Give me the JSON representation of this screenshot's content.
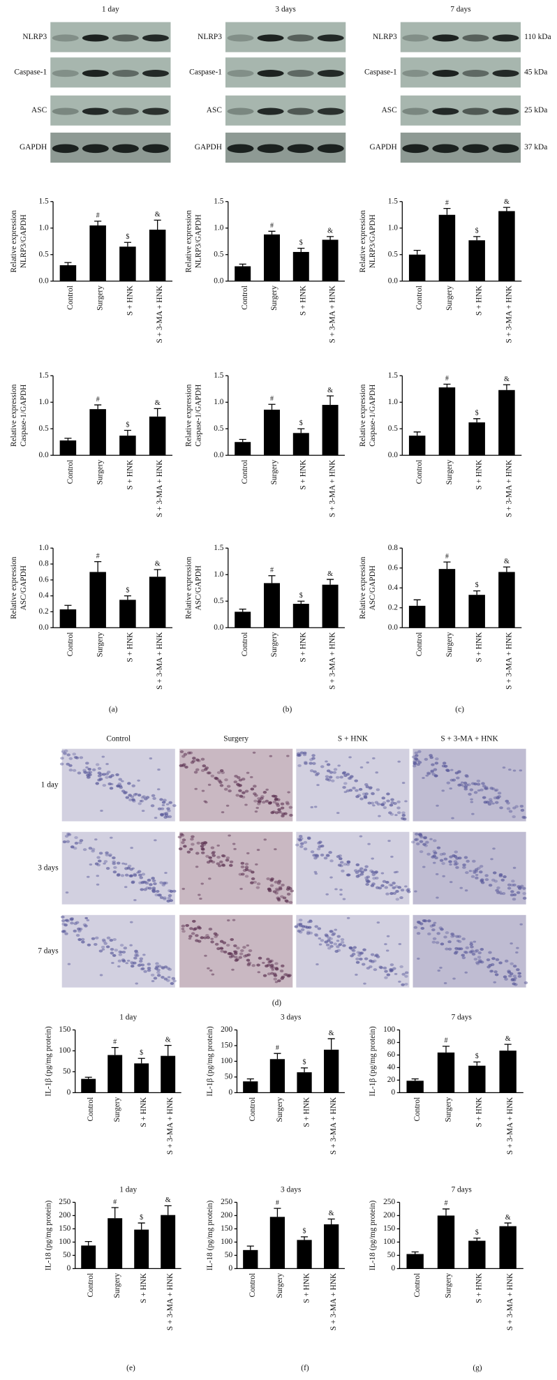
{
  "figure": {
    "blot_titles": [
      "1 day",
      "3 days",
      "7 days"
    ],
    "blot_proteins": [
      "NLRP3",
      "Caspase-1",
      "ASC",
      "GAPDH"
    ],
    "blot_sizes": [
      "110 kDa",
      "45 kDa",
      "25 kDa",
      "37 kDa"
    ],
    "histology_columns": [
      "Control",
      "Surgery",
      "S + HNK",
      "S + 3-MA + HNK"
    ],
    "histology_rows": [
      "1 day",
      "3 days",
      "7 days"
    ],
    "panel_labels": [
      "(a)",
      "(b)",
      "(c)",
      "(d)",
      "(e)",
      "(f)",
      "(g)"
    ]
  },
  "chart_data": [
    {
      "type": "bar",
      "ylabel": [
        "Relative expression",
        "NLRP3/GAPDH"
      ],
      "categories": [
        "Control",
        "Surgery",
        "S + HNK",
        "S + 3-MA + HNK"
      ],
      "values": [
        0.3,
        1.05,
        0.65,
        0.97
      ],
      "errors": [
        0.05,
        0.08,
        0.08,
        0.18
      ],
      "markers": [
        null,
        "#",
        "$",
        "&"
      ],
      "color": "#000000",
      "ylim": [
        0,
        1.5
      ],
      "yticks": [
        {
          "value": 0,
          "label": "0.0"
        },
        0.5,
        {
          "value": 1,
          "label": "1.0"
        },
        1.5
      ]
    },
    {
      "type": "bar",
      "ylabel": [
        "Relative expression",
        "NLRP3/GAPDH"
      ],
      "categories": [
        "Control",
        "Surgery",
        "S + HNK",
        "S + 3-MA + HNK"
      ],
      "values": [
        0.28,
        0.88,
        0.55,
        0.78
      ],
      "errors": [
        0.04,
        0.06,
        0.07,
        0.06
      ],
      "markers": [
        null,
        "#",
        "$",
        "&"
      ],
      "color": "#000000",
      "ylim": [
        0,
        1.5
      ],
      "yticks": [
        {
          "value": 0,
          "label": "0.0"
        },
        0.5,
        {
          "value": 1,
          "label": "1.0"
        },
        1.5
      ]
    },
    {
      "type": "bar",
      "ylabel": [
        "Relative expression",
        "NLRP3/GAPDH"
      ],
      "categories": [
        "Control",
        "Surgery",
        "S + HNK",
        "S + 3-MA + HNK"
      ],
      "values": [
        0.5,
        1.25,
        0.77,
        1.32
      ],
      "errors": [
        0.08,
        0.12,
        0.07,
        0.07
      ],
      "markers": [
        null,
        "#",
        "$",
        "&"
      ],
      "color": "#000000",
      "ylim": [
        0,
        1.5
      ],
      "yticks": [
        {
          "value": 0,
          "label": "0.0"
        },
        0.5,
        {
          "value": 1,
          "label": "1.0"
        },
        1.5
      ]
    },
    {
      "type": "bar",
      "ylabel": [
        "Relative expression",
        "Caspase-1/GAPDH"
      ],
      "categories": [
        "Control",
        "Surgery",
        "S + HNK",
        "S + 3-MA + HNK"
      ],
      "values": [
        0.28,
        0.87,
        0.37,
        0.73
      ],
      "errors": [
        0.04,
        0.08,
        0.1,
        0.15
      ],
      "markers": [
        null,
        "#",
        "$",
        "&"
      ],
      "color": "#000000",
      "ylim": [
        0,
        1.5
      ],
      "yticks": [
        {
          "value": 0,
          "label": "0.0"
        },
        0.5,
        {
          "value": 1,
          "label": "1.0"
        },
        1.5
      ]
    },
    {
      "type": "bar",
      "ylabel": [
        "Relative expression",
        "Caspase-1/GAPDH"
      ],
      "categories": [
        "Control",
        "Surgery",
        "S + HNK",
        "S + 3-MA + HNK"
      ],
      "values": [
        0.25,
        0.86,
        0.42,
        0.95
      ],
      "errors": [
        0.05,
        0.1,
        0.08,
        0.17
      ],
      "markers": [
        null,
        "#",
        "$",
        "&"
      ],
      "color": "#000000",
      "ylim": [
        0,
        1.5
      ],
      "yticks": [
        {
          "value": 0,
          "label": "0.0"
        },
        0.5,
        {
          "value": 1,
          "label": "1.0"
        },
        1.5
      ]
    },
    {
      "type": "bar",
      "ylabel": [
        "Relative expression",
        "Caspase-1/GAPDH"
      ],
      "categories": [
        "Control",
        "Surgery",
        "S + HNK",
        "S + 3-MA + HNK"
      ],
      "values": [
        0.37,
        1.28,
        0.62,
        1.23
      ],
      "errors": [
        0.07,
        0.06,
        0.07,
        0.1
      ],
      "markers": [
        null,
        "#",
        "$",
        "&"
      ],
      "color": "#000000",
      "ylim": [
        0,
        1.5
      ],
      "yticks": [
        {
          "value": 0,
          "label": "0.0"
        },
        0.5,
        {
          "value": 1,
          "label": "1.0"
        },
        1.5
      ]
    },
    {
      "type": "bar",
      "ylabel": [
        "Relative expression",
        "ASC/GAPDH"
      ],
      "categories": [
        "Control",
        "Surgery",
        "S + HNK",
        "S + 3-MA + HNK"
      ],
      "values": [
        0.23,
        0.7,
        0.35,
        0.64
      ],
      "errors": [
        0.05,
        0.13,
        0.05,
        0.09
      ],
      "markers": [
        null,
        "#",
        "$",
        "&"
      ],
      "color": "#000000",
      "ylim": [
        0,
        1
      ],
      "yticks": [
        {
          "value": 0,
          "label": "0.0"
        },
        0.2,
        0.4,
        0.6,
        0.8,
        {
          "value": 1,
          "label": "1.0"
        }
      ]
    },
    {
      "type": "bar",
      "ylabel": [
        "Relative expression",
        "ASC/GAPDH"
      ],
      "categories": [
        "Control",
        "Surgery",
        "S + HNK",
        "S + 3-MA + HNK"
      ],
      "values": [
        0.3,
        0.84,
        0.45,
        0.81
      ],
      "errors": [
        0.05,
        0.14,
        0.05,
        0.1
      ],
      "markers": [
        null,
        "#",
        "$",
        "&"
      ],
      "color": "#000000",
      "ylim": [
        0,
        1.5
      ],
      "yticks": [
        {
          "value": 0,
          "label": "0.0"
        },
        0.5,
        {
          "value": 1,
          "label": "1.0"
        },
        1.5
      ]
    },
    {
      "type": "bar",
      "ylabel": [
        "Relative expression",
        "ASC/GAPDH"
      ],
      "categories": [
        "Control",
        "Surgery",
        "S + HNK",
        "S + 3-MA + HNK"
      ],
      "values": [
        0.22,
        0.59,
        0.33,
        0.56
      ],
      "errors": [
        0.06,
        0.07,
        0.04,
        0.05
      ],
      "markers": [
        null,
        "#",
        "$",
        "&"
      ],
      "color": "#000000",
      "ylim": [
        0,
        0.8
      ],
      "yticks": [
        {
          "value": 0,
          "label": "0.0"
        },
        0.2,
        0.4,
        0.6,
        0.8
      ]
    },
    {
      "type": "bar",
      "title": "1 day",
      "ylabel": [
        "IL-1β (pg/mg protein)"
      ],
      "categories": [
        "Control",
        "Surgery",
        "S + HNK",
        "S + 3-MA + HNK"
      ],
      "values": [
        33,
        90,
        70,
        88
      ],
      "errors": [
        4,
        18,
        12,
        25
      ],
      "markers": [
        null,
        "#",
        "$",
        "&"
      ],
      "color": "#000000",
      "ylim": [
        0,
        150
      ],
      "yticks": [
        0,
        50,
        100,
        150
      ]
    },
    {
      "type": "bar",
      "title": "3 days",
      "ylabel": [
        "IL-1β (pg/mg protein)"
      ],
      "categories": [
        "Control",
        "Surgery",
        "S + HNK",
        "S + 3-MA + HNK"
      ],
      "values": [
        36,
        107,
        65,
        137
      ],
      "errors": [
        8,
        18,
        14,
        35
      ],
      "markers": [
        null,
        "#",
        "$",
        "&"
      ],
      "color": "#000000",
      "ylim": [
        0,
        200
      ],
      "yticks": [
        0,
        50,
        100,
        150,
        200
      ]
    },
    {
      "type": "bar",
      "title": "7 days",
      "ylabel": [
        "IL-1β (pg/mg protein)"
      ],
      "categories": [
        "Control",
        "Surgery",
        "S + HNK",
        "S + 3-MA + HNK"
      ],
      "values": [
        19,
        64,
        43,
        67
      ],
      "errors": [
        3,
        10,
        6,
        10
      ],
      "markers": [
        null,
        "#",
        "$",
        "&"
      ],
      "color": "#000000",
      "ylim": [
        0,
        100
      ],
      "yticks": [
        0,
        20,
        40,
        60,
        80,
        100
      ]
    },
    {
      "type": "bar",
      "title": "1 day",
      "ylabel": [
        "IL-18 (pg/mg protein)"
      ],
      "categories": [
        "Control",
        "Surgery",
        "S + HNK",
        "S + 3-MA + HNK"
      ],
      "values": [
        87,
        190,
        147,
        202
      ],
      "errors": [
        15,
        40,
        25,
        35
      ],
      "markers": [
        null,
        "#",
        "$",
        "&"
      ],
      "color": "#000000",
      "ylim": [
        0,
        250
      ],
      "yticks": [
        0,
        50,
        100,
        150,
        200,
        250
      ]
    },
    {
      "type": "bar",
      "title": "3 days",
      "ylabel": [
        "IL-18 (pg/mg protein)"
      ],
      "categories": [
        "Control",
        "Surgery",
        "S + HNK",
        "S + 3-MA + HNK"
      ],
      "values": [
        70,
        195,
        108,
        167
      ],
      "errors": [
        15,
        32,
        12,
        20
      ],
      "markers": [
        null,
        "#",
        "$",
        "&"
      ],
      "color": "#000000",
      "ylim": [
        0,
        250
      ],
      "yticks": [
        0,
        50,
        100,
        150,
        200,
        250
      ]
    },
    {
      "type": "bar",
      "title": "7 days",
      "ylabel": [
        "IL-18 (pg/mg protein)"
      ],
      "categories": [
        "Control",
        "Surgery",
        "S + HNK",
        "S + 3-MA + HNK"
      ],
      "values": [
        55,
        200,
        105,
        160
      ],
      "errors": [
        8,
        25,
        10,
        12
      ],
      "markers": [
        null,
        "#",
        "$",
        "&"
      ],
      "color": "#000000",
      "ylim": [
        0,
        250
      ],
      "yticks": [
        0,
        50,
        100,
        150,
        200,
        250
      ]
    }
  ]
}
